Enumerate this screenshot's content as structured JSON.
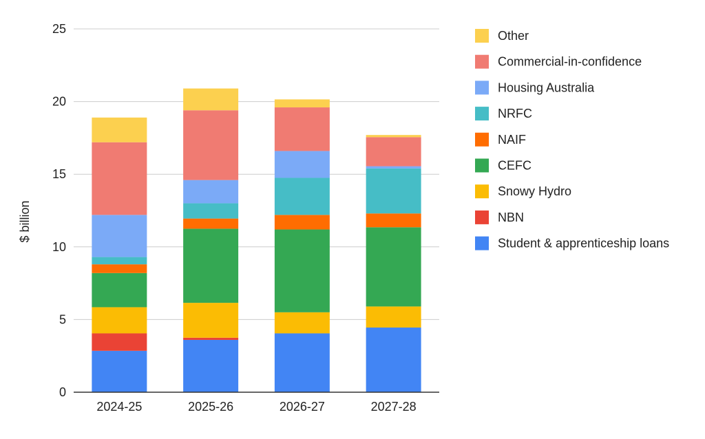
{
  "chart_data": {
    "type": "bar",
    "stacked": true,
    "categories": [
      "2024-25",
      "2025-26",
      "2026-27",
      "2027-28"
    ],
    "ylabel": "$ billion",
    "xlabel": "",
    "title": "",
    "ylim": [
      0,
      25
    ],
    "yticks": [
      0,
      5,
      10,
      15,
      20,
      25
    ],
    "grid": true,
    "legend_position": "right",
    "series": [
      {
        "name": "Student & apprenticeship loans",
        "color": "#4285F4",
        "values": [
          2.85,
          3.6,
          4.05,
          4.45
        ]
      },
      {
        "name": "NBN",
        "color": "#EA4335",
        "values": [
          1.2,
          0.15,
          0.0,
          0.0
        ]
      },
      {
        "name": "Snowy Hydro",
        "color": "#FBBC04",
        "values": [
          1.8,
          2.4,
          1.45,
          1.45
        ]
      },
      {
        "name": "CEFC",
        "color": "#34A853",
        "values": [
          2.35,
          5.1,
          5.7,
          5.45
        ]
      },
      {
        "name": "NAIF",
        "color": "#FF6D01",
        "values": [
          0.6,
          0.7,
          1.0,
          0.95
        ]
      },
      {
        "name": "NRFC",
        "color": "#46BDC6",
        "values": [
          0.5,
          1.05,
          2.55,
          3.1
        ]
      },
      {
        "name": "Housing Australia",
        "color": "#7BAAF7",
        "values": [
          2.9,
          1.6,
          1.85,
          0.15
        ]
      },
      {
        "name": "Commercial-in-confidence",
        "color": "#F07B72",
        "values": [
          5.0,
          4.8,
          3.0,
          2.0
        ]
      },
      {
        "name": "Other",
        "color": "#FCD04F",
        "values": [
          1.7,
          1.5,
          0.55,
          0.15
        ]
      }
    ]
  }
}
